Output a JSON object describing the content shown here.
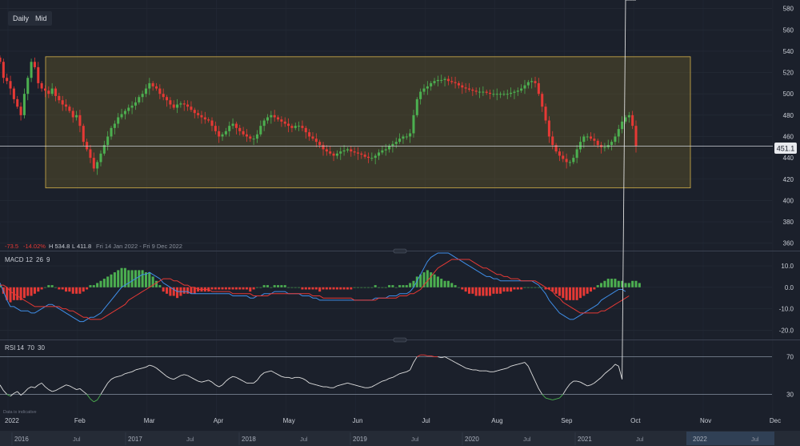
{
  "toolbar": {
    "interval_label": "Daily",
    "price_type_label": "Mid"
  },
  "summary": {
    "change": "-73.5",
    "change_pct": "-14.02%",
    "high": "H 534.8",
    "low": "L 411.8",
    "range": "Fri 14 Jan 2022 - Fri 9 Dec 2022"
  },
  "indicators": {
    "macd": {
      "name": "MACD",
      "p1": "12",
      "p2": "26",
      "p3": "9"
    },
    "rsi": {
      "name": "RSI",
      "p1": "14",
      "p2": "70",
      "p3": "30"
    }
  },
  "footer": {
    "note": "Data is indicative"
  },
  "colors": {
    "up": "#4caf50",
    "down": "#e53935",
    "channel": "#d4b24a",
    "macd": "#3f8ee8",
    "signal": "#e53935",
    "rsi": "#e0e0e0",
    "price_line": "#cfd3da"
  },
  "chart_data": [
    {
      "type": "candlestick",
      "title": "",
      "y_axis": {
        "ticks": [
          360,
          380,
          400,
          420,
          440,
          460,
          480,
          500,
          520,
          540,
          560,
          580
        ],
        "ylim": [
          353,
          588
        ]
      },
      "x_axis": {
        "labels": [
          "2022",
          "Feb",
          "Mar",
          "Apr",
          "May",
          "Jun",
          "Jul",
          "Aug",
          "Sep",
          "Oct",
          "Nov",
          "Dec"
        ]
      },
      "current_price": 451.1,
      "current_price_label": "451.1",
      "channel": {
        "upper": 534.8,
        "lower": 411.8
      },
      "series": [
        {
          "values": [
            530,
            515,
            512,
            505,
            495,
            488,
            480,
            500,
            515,
            530,
            525,
            510,
            505,
            503,
            500,
            505,
            498,
            494,
            490,
            488,
            484,
            478,
            480,
            470,
            455,
            448,
            440,
            430,
            436,
            444,
            452,
            460,
            468,
            472,
            478,
            481,
            484,
            487,
            489,
            492,
            497,
            500,
            505,
            510,
            507,
            505,
            500,
            497,
            494,
            490,
            487,
            490,
            491,
            490,
            488,
            485,
            482,
            480,
            478,
            476,
            475,
            470,
            465,
            460,
            462,
            465,
            470,
            472,
            468,
            465,
            462,
            460,
            458,
            458,
            462,
            470,
            475,
            478,
            480,
            478,
            476,
            474,
            472,
            470,
            468,
            470,
            470,
            468,
            464,
            460,
            458,
            455,
            452,
            448,
            446,
            444,
            442,
            444,
            446,
            447,
            448,
            446,
            445,
            444,
            443,
            441,
            440,
            440,
            442,
            445,
            447,
            448,
            451,
            453,
            455,
            458,
            460,
            460,
            463,
            480,
            495,
            502,
            505,
            507,
            510,
            512,
            513,
            513,
            514,
            512,
            511,
            510,
            508,
            506,
            505,
            504,
            503,
            502,
            502,
            502,
            501,
            500,
            500,
            500,
            500,
            500,
            500,
            501,
            502,
            503,
            505,
            508,
            511,
            512,
            510,
            500,
            488,
            475,
            460,
            452,
            446,
            442,
            439,
            436,
            436,
            440,
            448,
            455,
            460,
            460,
            458,
            456,
            452,
            450,
            450,
            452,
            455,
            460,
            467,
            474,
            478,
            480,
            470,
            451
          ]
        }
      ]
    },
    {
      "type": "bar",
      "title": "MACD 12 26 9",
      "y_axis": {
        "ticks": [
          -20,
          -10,
          0,
          10
        ],
        "tick_labels": [
          "-20.0",
          "-10.0",
          "0.0",
          "10.0"
        ],
        "ylim": [
          -24,
          16
        ]
      },
      "series": [
        {
          "name": "MACD",
          "values": [
            2,
            -2,
            -6,
            -9,
            -9,
            -10,
            -11,
            -11,
            -11,
            -12,
            -12,
            -11,
            -10,
            -9,
            -8,
            -8,
            -9,
            -10,
            -11,
            -12,
            -13,
            -14,
            -15,
            -16,
            -16,
            -15,
            -14,
            -14,
            -13,
            -12,
            -10,
            -8,
            -6,
            -4,
            -2,
            0,
            1,
            2,
            3,
            4,
            5,
            6,
            6,
            7,
            6,
            5,
            4,
            2,
            1,
            0,
            -1,
            -2,
            -2,
            -2,
            -2,
            -3,
            -3,
            -3,
            -3,
            -3,
            -3,
            -3,
            -3,
            -3,
            -3,
            -3,
            -3,
            -4,
            -4,
            -4,
            -4,
            -4,
            -5,
            -5,
            -4,
            -4,
            -3,
            -3,
            -3,
            -2,
            -2,
            -2,
            -2,
            -3,
            -3,
            -3,
            -3,
            -4,
            -4,
            -4,
            -5,
            -5,
            -6,
            -6,
            -6,
            -6,
            -6,
            -6,
            -6,
            -6,
            -6,
            -6,
            -6,
            -6,
            -6,
            -6,
            -6,
            -6,
            -5,
            -5,
            -5,
            -5,
            -4,
            -4,
            -4,
            -3,
            -3,
            -3,
            -2,
            0,
            3,
            6,
            9,
            12,
            14,
            15,
            16,
            16,
            16,
            16,
            15,
            14,
            13,
            12,
            11,
            10,
            9,
            8,
            7,
            6,
            5,
            5,
            4,
            4,
            3,
            3,
            3,
            3,
            3,
            3,
            3,
            3,
            3,
            3,
            2,
            1,
            -1,
            -3,
            -6,
            -8,
            -10,
            -12,
            -13,
            -14,
            -15,
            -15,
            -14,
            -13,
            -12,
            -11,
            -10,
            -9,
            -8,
            -6,
            -5,
            -4,
            -3,
            -2,
            -1,
            -1,
            -2
          ]
        },
        {
          "name": "Signal",
          "values": [
            1,
            1,
            0,
            -2,
            -3,
            -4,
            -5,
            -6,
            -7,
            -8,
            -9,
            -9,
            -9,
            -9,
            -9,
            -9,
            -9,
            -9,
            -10,
            -10,
            -11,
            -11,
            -12,
            -13,
            -14,
            -14,
            -15,
            -15,
            -15,
            -15,
            -14,
            -13,
            -12,
            -11,
            -10,
            -9,
            -8,
            -6,
            -5,
            -4,
            -3,
            -2,
            -1,
            0,
            1,
            2,
            3,
            4,
            4,
            4,
            3,
            3,
            2,
            1,
            1,
            0,
            0,
            -1,
            -1,
            -1,
            -1,
            -2,
            -2,
            -2,
            -2,
            -2,
            -2,
            -3,
            -3,
            -3,
            -3,
            -3,
            -3,
            -4,
            -4,
            -4,
            -4,
            -4,
            -3,
            -3,
            -3,
            -3,
            -3,
            -3,
            -3,
            -3,
            -3,
            -3,
            -3,
            -3,
            -4,
            -4,
            -4,
            -5,
            -5,
            -5,
            -5,
            -5,
            -5,
            -5,
            -5,
            -5,
            -6,
            -6,
            -6,
            -6,
            -6,
            -6,
            -6,
            -5,
            -5,
            -5,
            -5,
            -5,
            -5,
            -4,
            -4,
            -4,
            -3,
            -3,
            -2,
            -1,
            1,
            3,
            5,
            7,
            9,
            10,
            11,
            12,
            13,
            13,
            13,
            13,
            13,
            13,
            12,
            11,
            10,
            9,
            9,
            8,
            7,
            6,
            6,
            5,
            5,
            4,
            4,
            4,
            3,
            3,
            3,
            3,
            3,
            2,
            1,
            0,
            -1,
            -2,
            -4,
            -5,
            -7,
            -8,
            -9,
            -10,
            -11,
            -12,
            -12,
            -12,
            -12,
            -12,
            -12,
            -11,
            -11,
            -10,
            -9,
            -8,
            -7,
            -6,
            -5,
            -4
          ]
        },
        {
          "name": "Histogram",
          "values": [
            1,
            -3,
            -6,
            -7,
            -6,
            -6,
            -6,
            -5,
            -4,
            -4,
            -3,
            -2,
            -1,
            0,
            1,
            1,
            0,
            -1,
            -1,
            -2,
            -2,
            -3,
            -3,
            -3,
            -2,
            -1,
            1,
            1,
            2,
            3,
            4,
            5,
            6,
            7,
            8,
            9,
            9,
            8,
            8,
            8,
            8,
            8,
            7,
            7,
            5,
            3,
            1,
            -2,
            -3,
            -4,
            -4,
            -5,
            -4,
            -3,
            -3,
            -3,
            -3,
            -2,
            -2,
            -2,
            -2,
            -1,
            -1,
            -1,
            -1,
            -1,
            -1,
            -1,
            -1,
            -1,
            -1,
            -1,
            -2,
            -1,
            0,
            0,
            1,
            1,
            0,
            1,
            1,
            1,
            1,
            0,
            0,
            0,
            0,
            -1,
            -1,
            -1,
            -1,
            -1,
            -2,
            -1,
            -1,
            -1,
            -1,
            -1,
            -1,
            -1,
            -1,
            -1,
            0,
            0,
            0,
            0,
            0,
            0,
            1,
            0,
            0,
            0,
            1,
            1,
            0,
            1,
            1,
            1,
            2,
            3,
            5,
            6,
            7,
            8,
            7,
            6,
            5,
            4,
            3,
            3,
            2,
            1,
            0,
            -1,
            -2,
            -3,
            -3,
            -4,
            -4,
            -4,
            -4,
            -4,
            -3,
            -3,
            -3,
            -2,
            -2,
            -2,
            -1,
            -1,
            -1,
            0,
            0,
            0,
            0,
            0,
            0,
            -1,
            -1,
            -2,
            -3,
            -4,
            -5,
            -6,
            -6,
            -6,
            -6,
            -5,
            -4,
            -3,
            -2,
            -1,
            1,
            2,
            3,
            4,
            4,
            4,
            3,
            3,
            2,
            2,
            3,
            3,
            2
          ]
        }
      ]
    },
    {
      "type": "line",
      "title": "RSI 14 70 30",
      "y_axis": {
        "ticks": [
          30,
          70
        ],
        "ylim": [
          15,
          85
        ]
      },
      "series": [
        {
          "name": "RSI",
          "values": [
            40,
            34,
            30,
            28,
            31,
            33,
            29,
            32,
            36,
            38,
            37,
            40,
            42,
            38,
            35,
            33,
            34,
            36,
            38,
            40,
            39,
            37,
            35,
            36,
            33,
            30,
            25,
            22,
            24,
            30,
            36,
            42,
            46,
            48,
            49,
            50,
            52,
            53,
            54,
            56,
            57,
            58,
            59,
            61,
            60,
            58,
            55,
            52,
            49,
            47,
            46,
            48,
            50,
            51,
            50,
            48,
            46,
            44,
            43,
            44,
            45,
            43,
            40,
            38,
            40,
            44,
            47,
            49,
            48,
            46,
            44,
            42,
            42,
            42,
            45,
            50,
            53,
            54,
            55,
            53,
            51,
            49,
            48,
            48,
            47,
            48,
            48,
            47,
            45,
            42,
            41,
            40,
            39,
            38,
            38,
            37,
            37,
            39,
            40,
            41,
            42,
            41,
            40,
            39,
            38,
            37,
            37,
            38,
            40,
            42,
            44,
            45,
            47,
            48,
            50,
            52,
            53,
            54,
            56,
            64,
            70,
            72,
            72,
            71,
            71,
            70,
            70,
            69,
            70,
            68,
            66,
            64,
            62,
            60,
            58,
            57,
            56,
            56,
            55,
            55,
            55,
            54,
            54,
            55,
            56,
            57,
            58,
            60,
            61,
            62,
            63,
            64,
            60,
            52,
            44,
            36,
            30,
            26,
            25,
            24,
            25,
            26,
            30,
            36,
            41,
            44,
            44,
            43,
            41,
            39,
            40,
            42,
            45,
            48,
            52,
            55,
            58,
            62,
            60,
            46
          ]
        }
      ]
    }
  ],
  "time_nav": {
    "years": [
      "2016",
      "2017",
      "2018",
      "2019",
      "2020",
      "2021",
      "2022"
    ],
    "midyear_label": "Jul"
  }
}
